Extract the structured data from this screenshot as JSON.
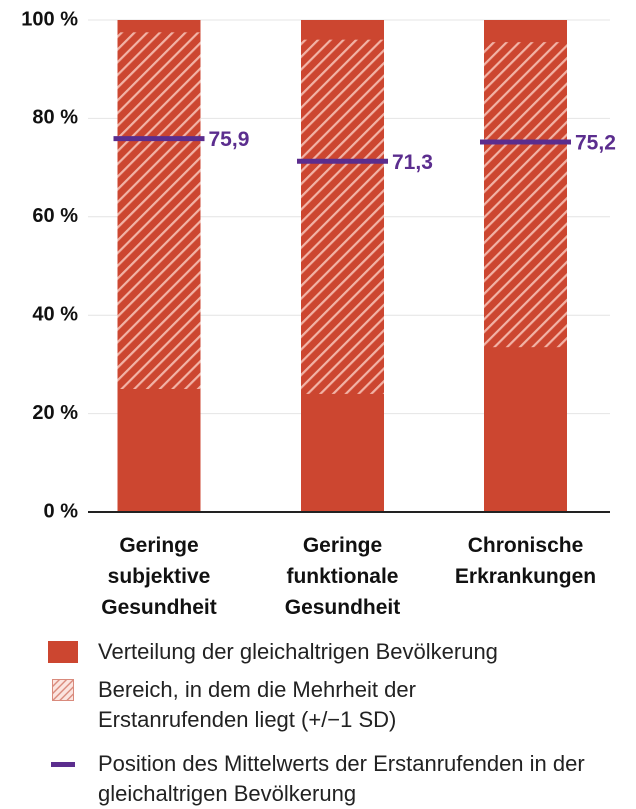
{
  "chart_data": {
    "type": "range_bar",
    "categories": [
      "Geringe subjektive Gesundheit",
      "Geringe funktionale Gesundheit",
      "Chronische Erkrankungen"
    ],
    "series": [
      {
        "name": "Verteilung der gleichaltrigen Bevölkerung",
        "color": "#cc4630",
        "values": [
          100,
          100,
          100
        ]
      },
      {
        "name": "Bereich, in dem die Mehrheit der Erstanrufenden liegt (+/−1 SD)",
        "color": "#f2b3a6",
        "low": [
          25,
          24,
          33.5
        ],
        "high": [
          97.5,
          96,
          95.5
        ]
      },
      {
        "name": "Position des Mittelwerts der Erstanrufenden in der gleichaltrigen Bevölkerung",
        "color": "#5b2d8e",
        "values": [
          75.9,
          71.3,
          75.2
        ],
        "value_labels": [
          "75,9",
          "71,3",
          "75,2"
        ]
      }
    ],
    "ylim": [
      0,
      100
    ],
    "yticks": [
      {
        "value": 0,
        "label": "0 %"
      },
      {
        "value": 20,
        "label": "20 %"
      },
      {
        "value": 40,
        "label": "40 %"
      },
      {
        "value": 60,
        "label": "60 %"
      },
      {
        "value": 80,
        "label": "80 %"
      },
      {
        "value": 100,
        "label": "100 %"
      }
    ],
    "grid": true
  }
}
